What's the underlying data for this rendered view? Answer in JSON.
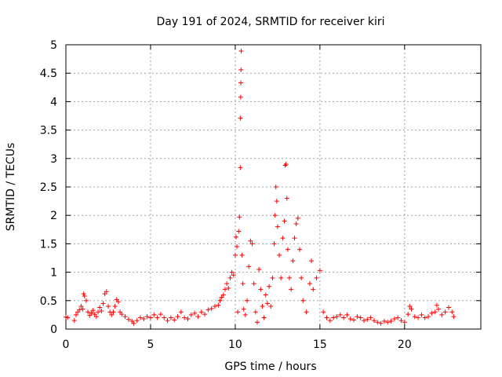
{
  "chart_data": {
    "type": "scatter",
    "title": "Day 191 of 2024, SRMTID for receiver kiri",
    "xlabel": "GPS time / hours",
    "ylabel": "SRMTID / TECUs",
    "xlim": [
      0,
      24.5
    ],
    "ylim": [
      0,
      5
    ],
    "grid": true,
    "marker": "+",
    "series_color": "#ff0000",
    "x_ticks": [
      0,
      5,
      10,
      15,
      20
    ],
    "x_tick_labels": [
      "0",
      "5",
      "10",
      "15",
      "20"
    ],
    "y_ticks": [
      0,
      0.5,
      1,
      1.5,
      2,
      2.5,
      3,
      3.5,
      4,
      4.5,
      5
    ],
    "y_tick_labels": [
      "0",
      "0.5",
      "1",
      "1.5",
      "2",
      "2.5",
      "3",
      "3.5",
      "4",
      "4.5",
      "5"
    ],
    "series": [
      {
        "name": "SRMTID",
        "points": [
          [
            0.0,
            0.21
          ],
          [
            0.1,
            0.2
          ],
          [
            0.5,
            0.15
          ],
          [
            0.6,
            0.25
          ],
          [
            0.7,
            0.3
          ],
          [
            0.8,
            0.34
          ],
          [
            0.9,
            0.4
          ],
          [
            1.0,
            0.35
          ],
          [
            1.05,
            0.62
          ],
          [
            1.1,
            0.58
          ],
          [
            1.2,
            0.5
          ],
          [
            1.3,
            0.3
          ],
          [
            1.4,
            0.24
          ],
          [
            1.5,
            0.28
          ],
          [
            1.6,
            0.33
          ],
          [
            1.7,
            0.26
          ],
          [
            1.8,
            0.22
          ],
          [
            1.9,
            0.3
          ],
          [
            2.0,
            0.38
          ],
          [
            2.1,
            0.32
          ],
          [
            2.2,
            0.45
          ],
          [
            2.3,
            0.62
          ],
          [
            2.4,
            0.66
          ],
          [
            2.5,
            0.4
          ],
          [
            2.6,
            0.3
          ],
          [
            2.7,
            0.25
          ],
          [
            2.8,
            0.3
          ],
          [
            2.9,
            0.4
          ],
          [
            3.0,
            0.52
          ],
          [
            3.1,
            0.48
          ],
          [
            3.2,
            0.3
          ],
          [
            3.3,
            0.26
          ],
          [
            3.5,
            0.22
          ],
          [
            3.7,
            0.17
          ],
          [
            3.9,
            0.14
          ],
          [
            4.0,
            0.1
          ],
          [
            4.2,
            0.15
          ],
          [
            4.4,
            0.2
          ],
          [
            4.6,
            0.18
          ],
          [
            4.8,
            0.22
          ],
          [
            5.0,
            0.2
          ],
          [
            5.2,
            0.25
          ],
          [
            5.4,
            0.2
          ],
          [
            5.6,
            0.26
          ],
          [
            5.8,
            0.2
          ],
          [
            6.0,
            0.15
          ],
          [
            6.2,
            0.2
          ],
          [
            6.4,
            0.16
          ],
          [
            6.6,
            0.22
          ],
          [
            6.8,
            0.3
          ],
          [
            7.0,
            0.2
          ],
          [
            7.2,
            0.18
          ],
          [
            7.4,
            0.25
          ],
          [
            7.6,
            0.28
          ],
          [
            7.8,
            0.22
          ],
          [
            8.0,
            0.3
          ],
          [
            8.2,
            0.26
          ],
          [
            8.4,
            0.34
          ],
          [
            8.6,
            0.36
          ],
          [
            8.8,
            0.4
          ],
          [
            9.0,
            0.42
          ],
          [
            9.1,
            0.5
          ],
          [
            9.2,
            0.56
          ],
          [
            9.3,
            0.6
          ],
          [
            9.4,
            0.7
          ],
          [
            9.5,
            0.8
          ],
          [
            9.6,
            0.72
          ],
          [
            9.7,
            0.9
          ],
          [
            9.8,
            1.0
          ],
          [
            9.9,
            0.95
          ],
          [
            10.0,
            1.3
          ],
          [
            10.05,
            1.62
          ],
          [
            10.1,
            1.45
          ],
          [
            10.15,
            0.3
          ],
          [
            10.2,
            1.72
          ],
          [
            10.25,
            1.97
          ],
          [
            10.3,
            2.84
          ],
          [
            10.3,
            3.71
          ],
          [
            10.32,
            4.08
          ],
          [
            10.33,
            4.33
          ],
          [
            10.34,
            4.56
          ],
          [
            10.35,
            4.89
          ],
          [
            10.4,
            1.3
          ],
          [
            10.45,
            0.8
          ],
          [
            10.5,
            0.35
          ],
          [
            10.6,
            0.25
          ],
          [
            10.7,
            0.5
          ],
          [
            10.8,
            1.1
          ],
          [
            10.9,
            1.55
          ],
          [
            11.0,
            1.5
          ],
          [
            11.1,
            0.8
          ],
          [
            11.2,
            0.3
          ],
          [
            11.3,
            0.12
          ],
          [
            11.4,
            1.05
          ],
          [
            11.5,
            0.7
          ],
          [
            11.6,
            0.4
          ],
          [
            11.7,
            0.2
          ],
          [
            11.8,
            0.6
          ],
          [
            11.9,
            0.45
          ],
          [
            12.0,
            0.75
          ],
          [
            12.1,
            0.4
          ],
          [
            12.2,
            0.9
          ],
          [
            12.3,
            1.5
          ],
          [
            12.35,
            2.0
          ],
          [
            12.4,
            2.5
          ],
          [
            12.45,
            2.25
          ],
          [
            12.5,
            1.8
          ],
          [
            12.6,
            1.3
          ],
          [
            12.7,
            0.9
          ],
          [
            12.8,
            1.6
          ],
          [
            12.9,
            1.9
          ],
          [
            12.95,
            2.88
          ],
          [
            13.0,
            2.9
          ],
          [
            13.05,
            2.3
          ],
          [
            13.1,
            1.4
          ],
          [
            13.2,
            0.9
          ],
          [
            13.3,
            0.7
          ],
          [
            13.4,
            1.2
          ],
          [
            13.5,
            1.6
          ],
          [
            13.6,
            1.85
          ],
          [
            13.7,
            1.95
          ],
          [
            13.8,
            1.4
          ],
          [
            13.9,
            0.9
          ],
          [
            14.0,
            0.5
          ],
          [
            14.2,
            0.3
          ],
          [
            14.4,
            0.8
          ],
          [
            14.5,
            1.2
          ],
          [
            14.6,
            0.7
          ],
          [
            14.8,
            0.9
          ],
          [
            15.0,
            1.03
          ],
          [
            15.2,
            0.3
          ],
          [
            15.4,
            0.2
          ],
          [
            15.6,
            0.15
          ],
          [
            15.8,
            0.2
          ],
          [
            16.0,
            0.22
          ],
          [
            16.2,
            0.25
          ],
          [
            16.4,
            0.2
          ],
          [
            16.6,
            0.25
          ],
          [
            16.8,
            0.18
          ],
          [
            17.0,
            0.16
          ],
          [
            17.2,
            0.22
          ],
          [
            17.4,
            0.2
          ],
          [
            17.6,
            0.15
          ],
          [
            17.8,
            0.17
          ],
          [
            18.0,
            0.2
          ],
          [
            18.2,
            0.15
          ],
          [
            18.4,
            0.12
          ],
          [
            18.6,
            0.1
          ],
          [
            18.8,
            0.14
          ],
          [
            19.0,
            0.12
          ],
          [
            19.2,
            0.14
          ],
          [
            19.4,
            0.18
          ],
          [
            19.6,
            0.2
          ],
          [
            19.8,
            0.15
          ],
          [
            20.0,
            0.12
          ],
          [
            20.2,
            0.26
          ],
          [
            20.3,
            0.4
          ],
          [
            20.4,
            0.35
          ],
          [
            20.6,
            0.22
          ],
          [
            20.8,
            0.2
          ],
          [
            21.0,
            0.25
          ],
          [
            21.2,
            0.2
          ],
          [
            21.4,
            0.22
          ],
          [
            21.6,
            0.28
          ],
          [
            21.8,
            0.3
          ],
          [
            21.9,
            0.42
          ],
          [
            22.0,
            0.35
          ],
          [
            22.2,
            0.25
          ],
          [
            22.4,
            0.3
          ],
          [
            22.6,
            0.38
          ],
          [
            22.8,
            0.3
          ],
          [
            22.9,
            0.22
          ]
        ]
      }
    ]
  }
}
